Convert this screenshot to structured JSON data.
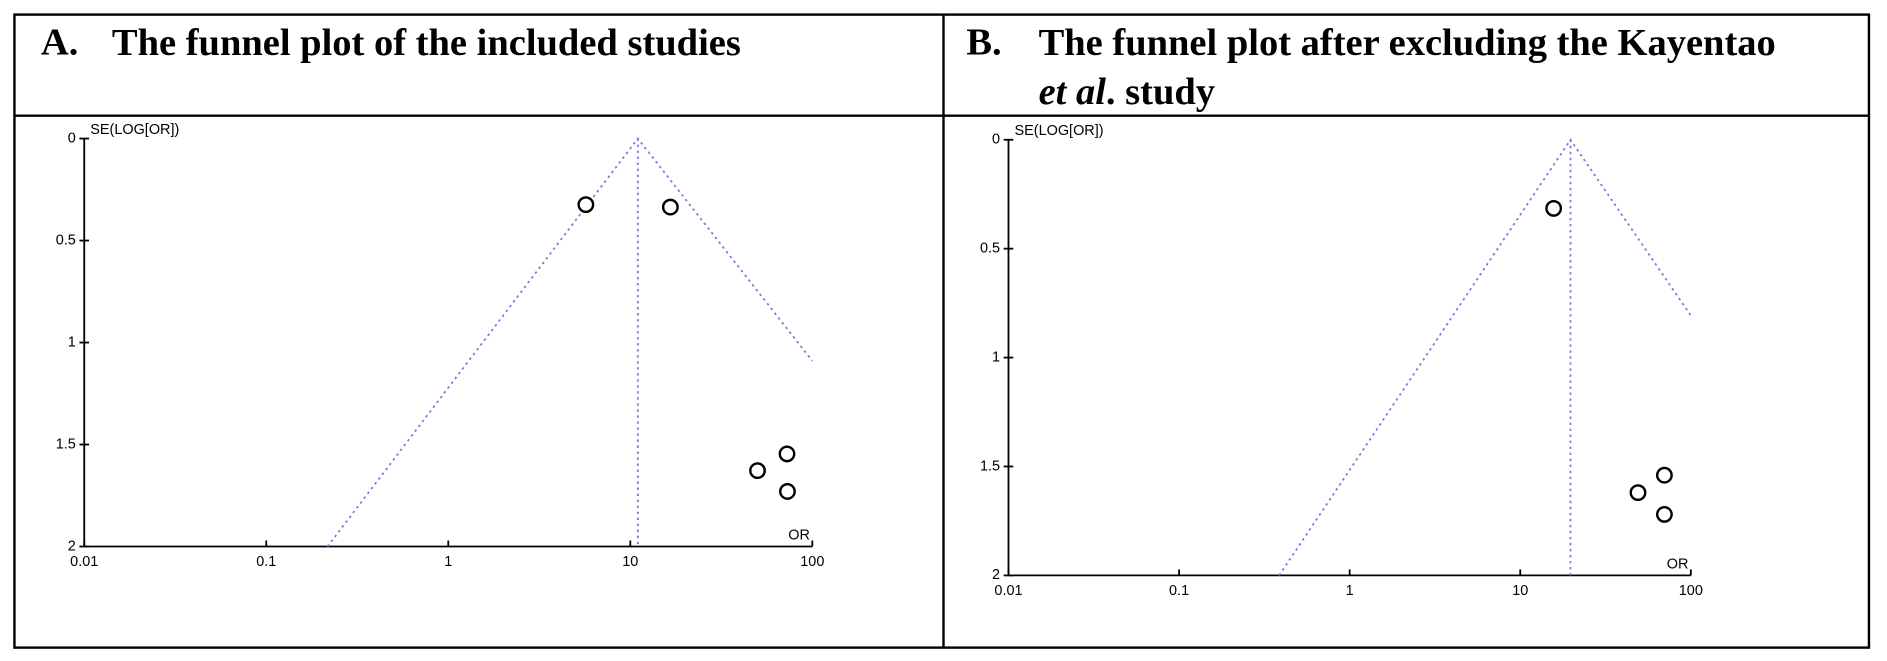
{
  "chart_data": [
    {
      "type": "funnel",
      "title_label": "A.",
      "title": [
        "The funnel plot of the included studies"
      ],
      "title_italic": [
        false
      ],
      "y_label": "SE(LOG[OR])",
      "x_label": "OR",
      "x_log": true,
      "y_inverted": true,
      "x": [
        5.7,
        16.6,
        72.6,
        50,
        73
      ],
      "values": [
        0.324,
        0.336,
        1.546,
        1.628,
        1.73
      ],
      "color": "#000000",
      "funnel": {
        "x": [
          0.217,
          11,
          100
        ],
        "y": [
          2,
          0,
          1.09
        ]
      },
      "pooled": {
        "x": [
          11,
          11
        ],
        "y": [
          0,
          2
        ]
      },
      "funnel_color": "#7b7bdc",
      "xlim": [
        0.01,
        100
      ],
      "ylim": [
        0,
        2
      ],
      "xticks": [
        0.01,
        0.1,
        1,
        10,
        100
      ],
      "yticks": [
        0,
        0.5,
        1,
        1.5,
        2
      ]
    },
    {
      "type": "funnel",
      "title_label": "B.",
      "title": [
        "The funnel plot after excluding the Kayentao",
        "et al",
        ". study"
      ],
      "title_italic": [
        false,
        true,
        false
      ],
      "y_label": "SE(LOG[OR])",
      "x_label": "OR",
      "x_log": true,
      "y_inverted": true,
      "x": [
        15.7,
        70,
        49,
        70
      ],
      "values": [
        0.315,
        1.54,
        1.62,
        1.72
      ],
      "color": "#000000",
      "funnel": {
        "x": [
          0.386,
          19.7,
          100
        ],
        "y": [
          2,
          0,
          0.807
        ]
      },
      "pooled": {
        "x": [
          19.7,
          19.7
        ],
        "y": [
          0,
          2
        ]
      },
      "funnel_color": "#7b7bdc",
      "xlim": [
        0.01,
        100
      ],
      "ylim": [
        0,
        2
      ],
      "xticks": [
        0.01,
        0.1,
        1,
        10,
        100
      ],
      "yticks": [
        0,
        0.5,
        1,
        1.5,
        2
      ]
    }
  ]
}
